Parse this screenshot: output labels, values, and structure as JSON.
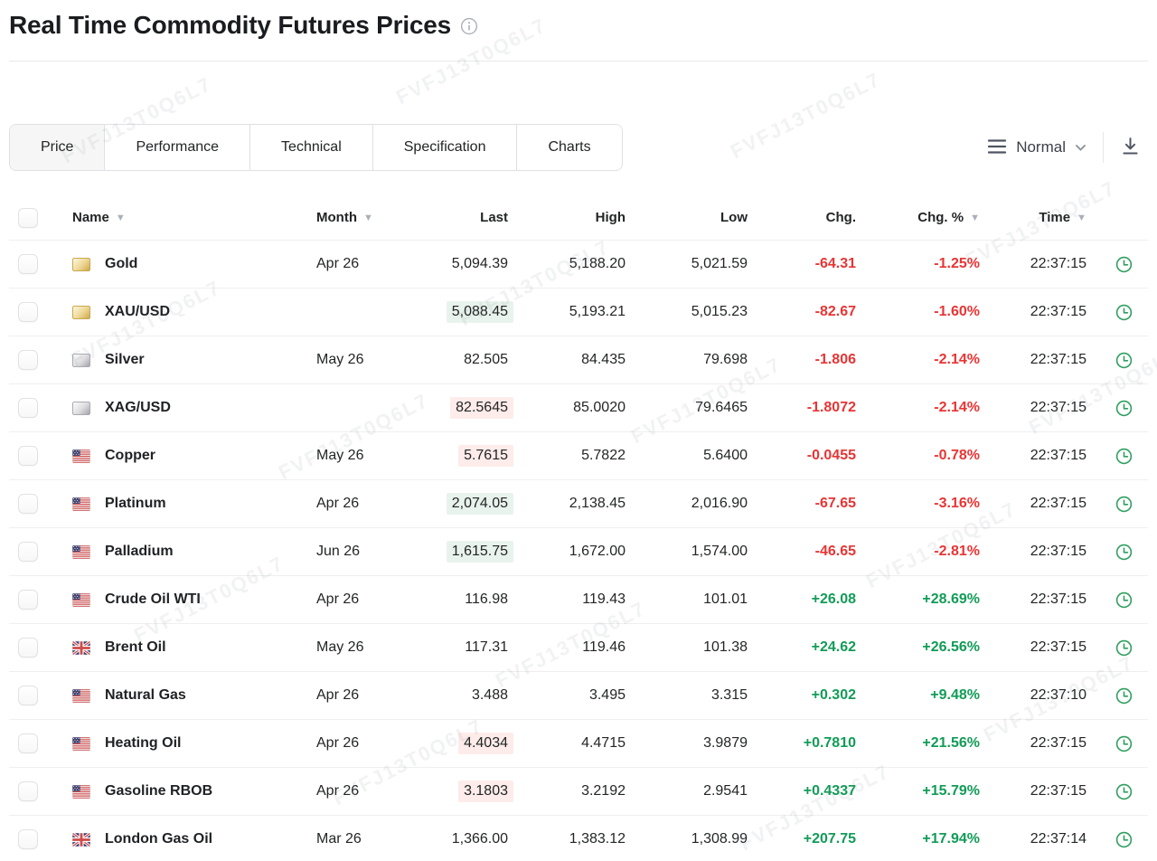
{
  "page": {
    "title": "Real Time Commodity Futures Prices",
    "watermark_text": "FVFJ13T0Q6L7"
  },
  "toolbar": {
    "tabs": [
      {
        "label": "Price",
        "active": true
      },
      {
        "label": "Performance",
        "active": false
      },
      {
        "label": "Technical",
        "active": false
      },
      {
        "label": "Specification",
        "active": false
      },
      {
        "label": "Charts",
        "active": false
      }
    ],
    "view_mode_label": "Normal",
    "icons": {
      "menu": "menu-icon",
      "view_chevron": "chevron-down-icon",
      "download": "download-icon",
      "title_info": "info-icon"
    }
  },
  "table": {
    "headers": {
      "name": "Name",
      "month": "Month",
      "last": "Last",
      "high": "High",
      "low": "Low",
      "chg": "Chg.",
      "chg_pct": "Chg. %",
      "time": "Time"
    },
    "sorted_columns": [
      "name",
      "month",
      "chg_pct",
      "time"
    ],
    "rows": [
      {
        "icon": "gold",
        "name": "Gold",
        "month": "Apr 26",
        "last": "5,094.39",
        "flash": null,
        "high": "5,188.20",
        "low": "5,021.59",
        "chg": "-64.31",
        "chg_pct": "-1.25%",
        "time": "22:37:15",
        "direction": "down"
      },
      {
        "icon": "gold",
        "name": "XAU/USD",
        "month": "",
        "last": "5,088.45",
        "flash": "up",
        "high": "5,193.21",
        "low": "5,015.23",
        "chg": "-82.67",
        "chg_pct": "-1.60%",
        "time": "22:37:15",
        "direction": "down"
      },
      {
        "icon": "silver",
        "name": "Silver",
        "month": "May 26",
        "last": "82.505",
        "flash": null,
        "high": "84.435",
        "low": "79.698",
        "chg": "-1.806",
        "chg_pct": "-2.14%",
        "time": "22:37:15",
        "direction": "down"
      },
      {
        "icon": "silver",
        "name": "XAG/USD",
        "month": "",
        "last": "82.5645",
        "flash": "down",
        "high": "85.0020",
        "low": "79.6465",
        "chg": "-1.8072",
        "chg_pct": "-2.14%",
        "time": "22:37:15",
        "direction": "down"
      },
      {
        "icon": "us",
        "name": "Copper",
        "month": "May 26",
        "last": "5.7615",
        "flash": "down",
        "high": "5.7822",
        "low": "5.6400",
        "chg": "-0.0455",
        "chg_pct": "-0.78%",
        "time": "22:37:15",
        "direction": "down"
      },
      {
        "icon": "us",
        "name": "Platinum",
        "month": "Apr 26",
        "last": "2,074.05",
        "flash": "up",
        "high": "2,138.45",
        "low": "2,016.90",
        "chg": "-67.65",
        "chg_pct": "-3.16%",
        "time": "22:37:15",
        "direction": "down"
      },
      {
        "icon": "us",
        "name": "Palladium",
        "month": "Jun 26",
        "last": "1,615.75",
        "flash": "up",
        "high": "1,672.00",
        "low": "1,574.00",
        "chg": "-46.65",
        "chg_pct": "-2.81%",
        "time": "22:37:15",
        "direction": "down"
      },
      {
        "icon": "us",
        "name": "Crude Oil WTI",
        "month": "Apr 26",
        "last": "116.98",
        "flash": null,
        "high": "119.43",
        "low": "101.01",
        "chg": "+26.08",
        "chg_pct": "+28.69%",
        "time": "22:37:15",
        "direction": "up"
      },
      {
        "icon": "uk",
        "name": "Brent Oil",
        "month": "May 26",
        "last": "117.31",
        "flash": null,
        "high": "119.46",
        "low": "101.38",
        "chg": "+24.62",
        "chg_pct": "+26.56%",
        "time": "22:37:15",
        "direction": "up"
      },
      {
        "icon": "us",
        "name": "Natural Gas",
        "month": "Apr 26",
        "last": "3.488",
        "flash": null,
        "high": "3.495",
        "low": "3.315",
        "chg": "+0.302",
        "chg_pct": "+9.48%",
        "time": "22:37:10",
        "direction": "up"
      },
      {
        "icon": "us",
        "name": "Heating Oil",
        "month": "Apr 26",
        "last": "4.4034",
        "flash": "down",
        "high": "4.4715",
        "low": "3.9879",
        "chg": "+0.7810",
        "chg_pct": "+21.56%",
        "time": "22:37:15",
        "direction": "up"
      },
      {
        "icon": "us",
        "name": "Gasoline RBOB",
        "month": "Apr 26",
        "last": "3.1803",
        "flash": "down",
        "high": "3.2192",
        "low": "2.9541",
        "chg": "+0.4337",
        "chg_pct": "+15.79%",
        "time": "22:37:15",
        "direction": "up"
      },
      {
        "icon": "uk",
        "name": "London Gas Oil",
        "month": "Mar 26",
        "last": "1,366.00",
        "flash": null,
        "high": "1,383.12",
        "low": "1,308.99",
        "chg": "+207.75",
        "chg_pct": "+17.94%",
        "time": "22:37:14",
        "direction": "up"
      }
    ]
  },
  "colors": {
    "up": "#119c57",
    "down": "#e93434",
    "flash_up_bg": "#e9f3ed",
    "flash_down_bg": "#fdecea",
    "clock_green": "#2f9e5f"
  }
}
